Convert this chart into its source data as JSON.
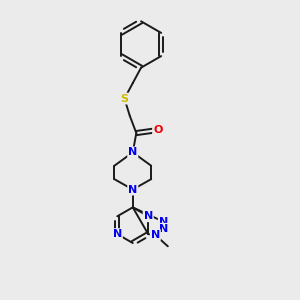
{
  "background_color": "#ebebeb",
  "bond_color": "#1a1a1a",
  "bond_width": 1.4,
  "atom_colors": {
    "N": "#0000ee",
    "O": "#ee0000",
    "S": "#ccbb00",
    "C": "#1a1a1a"
  },
  "font_size": 8,
  "figsize": [
    3.0,
    3.0
  ],
  "dpi": 100
}
